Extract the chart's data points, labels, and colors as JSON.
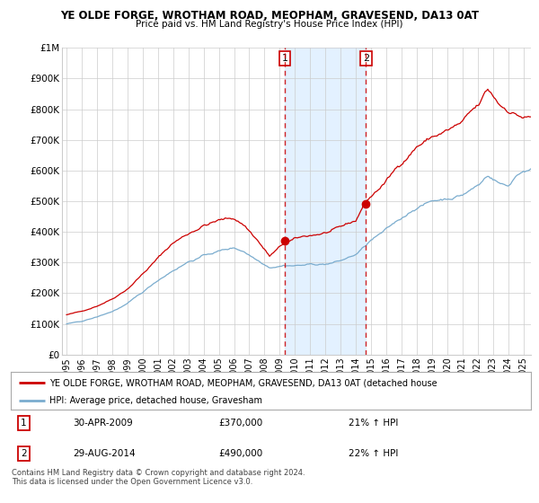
{
  "title1": "YE OLDE FORGE, WROTHAM ROAD, MEOPHAM, GRAVESEND, DA13 0AT",
  "title2": "Price paid vs. HM Land Registry's House Price Index (HPI)",
  "legend_line1": "YE OLDE FORGE, WROTHAM ROAD, MEOPHAM, GRAVESEND, DA13 0AT (detached house",
  "legend_line2": "HPI: Average price, detached house, Gravesham",
  "annotation1_num": "1",
  "annotation1_date": "30-APR-2009",
  "annotation1_price": "£370,000",
  "annotation1_hpi": "21% ↑ HPI",
  "annotation2_num": "2",
  "annotation2_date": "29-AUG-2014",
  "annotation2_price": "£490,000",
  "annotation2_hpi": "22% ↑ HPI",
  "footer": "Contains HM Land Registry data © Crown copyright and database right 2024.\nThis data is licensed under the Open Government Licence v3.0.",
  "vline1_year": 2009.33,
  "vline2_year": 2014.67,
  "dot1_year": 2009.33,
  "dot1_val": 370000,
  "dot2_year": 2014.67,
  "dot2_val": 490000,
  "red_color": "#cc0000",
  "blue_color": "#7aacce",
  "shade_color": "#ddeeff",
  "ylim": [
    0,
    1000000
  ],
  "xlim_start": 1994.7,
  "xlim_end": 2025.5,
  "bg_color": "#f0f4fa"
}
